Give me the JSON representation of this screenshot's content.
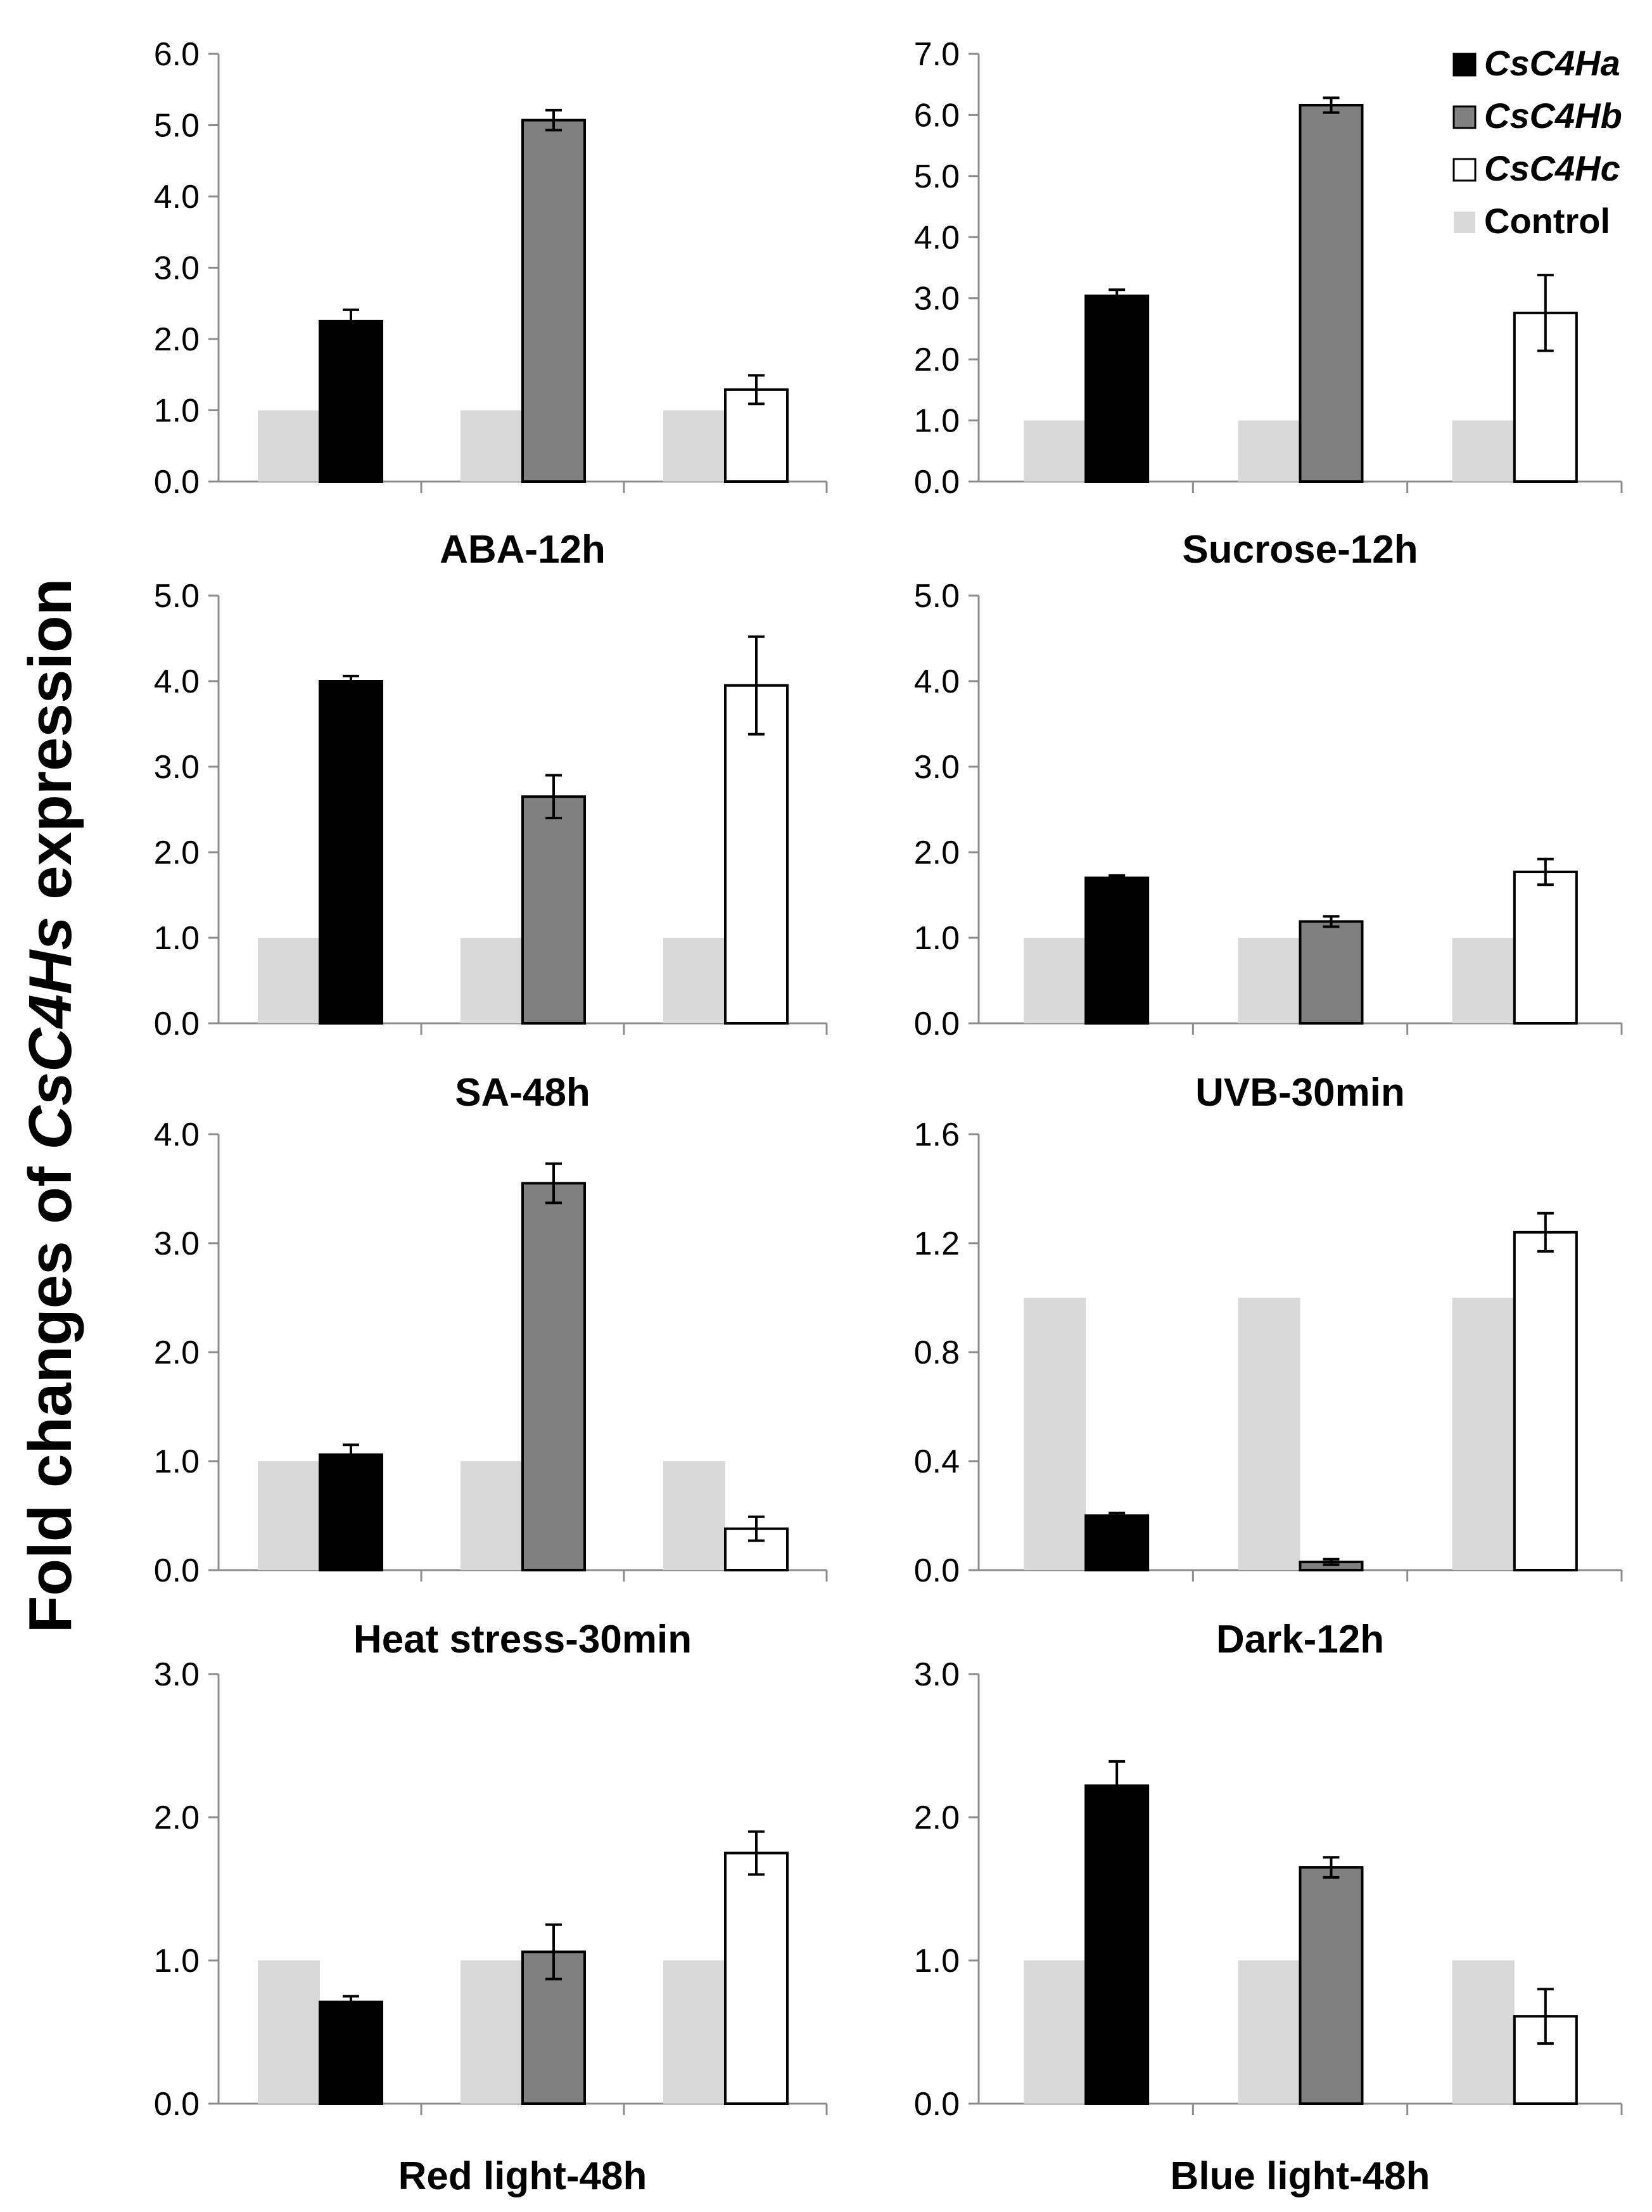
{
  "figure": {
    "ylabel_prefix": "Fold changes of ",
    "ylabel_gene": "CsC4Hs",
    "ylabel_suffix": " expression"
  },
  "legend": [
    {
      "name": "CsC4Ha",
      "color": "#000000",
      "italic": true
    },
    {
      "name": "CsC4Hb",
      "color": "#808080",
      "italic": true
    },
    {
      "name": "CsC4Hc",
      "color": "#ffffff",
      "italic": true
    },
    {
      "name": "Control",
      "color": "#d9d9d9",
      "italic": false
    }
  ],
  "chart_data": [
    {
      "type": "bar",
      "title": "ABA-12h",
      "ylim": [
        0,
        6
      ],
      "yticks": [
        0,
        1,
        2,
        3,
        4,
        5,
        6
      ],
      "ytick_labels": [
        "0.0",
        "1.0",
        "2.0",
        "3.0",
        "4.0",
        "5.0",
        "6.0"
      ],
      "series": [
        {
          "name": "Control",
          "values": [
            1.0,
            1.0,
            1.0
          ]
        },
        {
          "name": "CsC4H",
          "genes": [
            "CsC4Ha",
            "CsC4Hb",
            "CsC4Hc"
          ],
          "values": [
            2.25,
            5.07,
            1.29
          ],
          "errors": [
            0.16,
            0.14,
            0.2
          ]
        }
      ]
    },
    {
      "type": "bar",
      "title": "Sucrose-12h",
      "ylim": [
        0,
        7
      ],
      "yticks": [
        0,
        1,
        2,
        3,
        4,
        5,
        6,
        7
      ],
      "ytick_labels": [
        "0.0",
        "1.0",
        "2.0",
        "3.0",
        "4.0",
        "5.0",
        "6.0",
        "7.0"
      ],
      "series": [
        {
          "name": "Control",
          "values": [
            1.0,
            1.0,
            1.0
          ]
        },
        {
          "name": "CsC4H",
          "genes": [
            "CsC4Ha",
            "CsC4Hb",
            "CsC4Hc"
          ],
          "values": [
            3.04,
            6.16,
            2.76
          ],
          "errors": [
            0.1,
            0.12,
            0.62
          ]
        }
      ]
    },
    {
      "type": "bar",
      "title": "SA-48h",
      "ylim": [
        0,
        5
      ],
      "yticks": [
        0,
        1,
        2,
        3,
        4,
        5
      ],
      "ytick_labels": [
        "0.0",
        "1.0",
        "2.0",
        "3.0",
        "4.0",
        "5.0"
      ],
      "series": [
        {
          "name": "Control",
          "values": [
            1.0,
            1.0,
            1.0
          ]
        },
        {
          "name": "CsC4H",
          "genes": [
            "CsC4Ha",
            "CsC4Hb",
            "CsC4Hc"
          ],
          "values": [
            4.0,
            2.65,
            3.95
          ],
          "errors": [
            0.06,
            0.25,
            0.57
          ]
        }
      ]
    },
    {
      "type": "bar",
      "title": "UVB-30min",
      "ylim": [
        0,
        5
      ],
      "yticks": [
        0,
        1,
        2,
        3,
        4,
        5
      ],
      "ytick_labels": [
        "0.0",
        "1.0",
        "2.0",
        "3.0",
        "4.0",
        "5.0"
      ],
      "series": [
        {
          "name": "Control",
          "values": [
            1.0,
            1.0,
            1.0
          ]
        },
        {
          "name": "CsC4H",
          "genes": [
            "CsC4Ha",
            "CsC4Hb",
            "CsC4Hc"
          ],
          "values": [
            1.7,
            1.19,
            1.77
          ],
          "errors": [
            0.03,
            0.06,
            0.15
          ]
        }
      ]
    },
    {
      "type": "bar",
      "title": "Heat stress-30min",
      "ylim": [
        0,
        4
      ],
      "yticks": [
        0,
        1,
        2,
        3,
        4
      ],
      "ytick_labels": [
        "0.0",
        "1.0",
        "2.0",
        "3.0",
        "4.0"
      ],
      "series": [
        {
          "name": "Control",
          "values": [
            1.0,
            1.0,
            1.0
          ]
        },
        {
          "name": "CsC4H",
          "genes": [
            "CsC4Ha",
            "CsC4Hb",
            "CsC4Hc"
          ],
          "values": [
            1.06,
            3.55,
            0.38
          ],
          "errors": [
            0.09,
            0.18,
            0.11
          ]
        }
      ]
    },
    {
      "type": "bar",
      "title": "Dark-12h",
      "ylim": [
        0,
        1.6
      ],
      "yticks": [
        0,
        0.4,
        0.8,
        1.2,
        1.6
      ],
      "ytick_labels": [
        "0.0",
        "0.4",
        "0.8",
        "1.2",
        "1.6"
      ],
      "series": [
        {
          "name": "Control",
          "values": [
            1.0,
            1.0,
            1.0
          ]
        },
        {
          "name": "CsC4H",
          "genes": [
            "CsC4Ha",
            "CsC4Hb",
            "CsC4Hc"
          ],
          "values": [
            0.2,
            0.03,
            1.24
          ],
          "errors": [
            0.01,
            0.01,
            0.07
          ]
        }
      ]
    },
    {
      "type": "bar",
      "title": "Red light-48h",
      "ylim": [
        0,
        3
      ],
      "yticks": [
        0,
        1,
        2,
        3
      ],
      "ytick_labels": [
        "0.0",
        "1.0",
        "2.0",
        "3.0"
      ],
      "series": [
        {
          "name": "Control",
          "values": [
            1.0,
            1.0,
            1.0
          ]
        },
        {
          "name": "CsC4H",
          "genes": [
            "CsC4Ha",
            "CsC4Hb",
            "CsC4Hc"
          ],
          "values": [
            0.71,
            1.06,
            1.75
          ],
          "errors": [
            0.04,
            0.19,
            0.15
          ]
        }
      ]
    },
    {
      "type": "bar",
      "title": "Blue light-48h",
      "ylim": [
        0,
        3
      ],
      "yticks": [
        0,
        1,
        2,
        3
      ],
      "ytick_labels": [
        "0.0",
        "1.0",
        "2.0",
        "3.0"
      ],
      "series": [
        {
          "name": "Control",
          "values": [
            1.0,
            1.0,
            1.0
          ]
        },
        {
          "name": "CsC4H",
          "genes": [
            "CsC4Ha",
            "CsC4Hb",
            "CsC4Hc"
          ],
          "values": [
            2.22,
            1.65,
            0.61
          ],
          "errors": [
            0.17,
            0.07,
            0.19
          ]
        }
      ]
    }
  ]
}
